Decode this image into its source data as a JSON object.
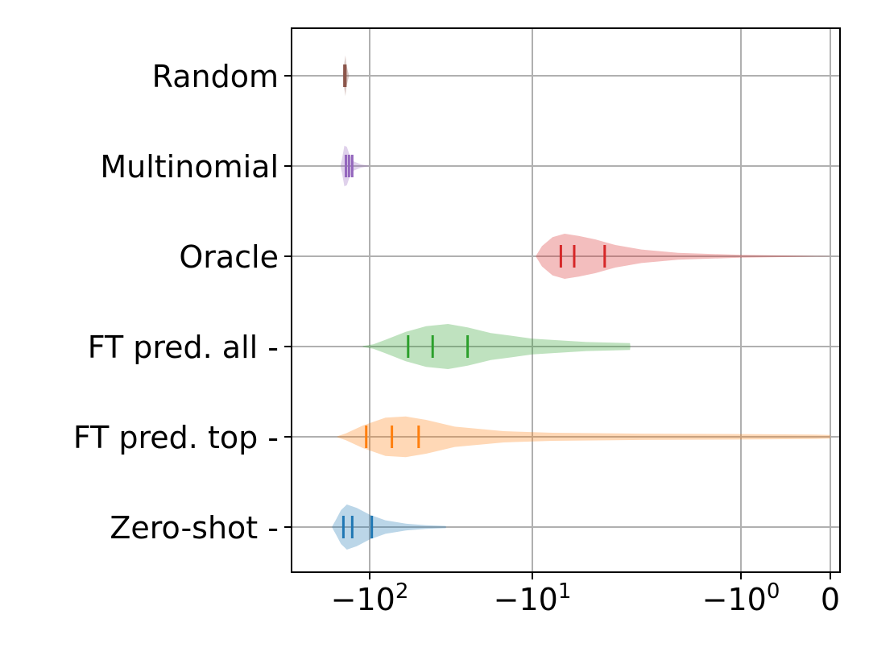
{
  "chart_data": {
    "type": "violin",
    "orientation": "horizontal",
    "xscale": "symlog",
    "xlim": [
      -170,
      0.05
    ],
    "xlabel": "",
    "ylabel": "",
    "title": "",
    "grid": true,
    "xticks": [
      {
        "value": -100,
        "base": "−10",
        "exp": "2"
      },
      {
        "value": -10,
        "base": "−10",
        "exp": "1"
      },
      {
        "value": -1,
        "base": "−10",
        "exp": "0"
      },
      {
        "value": 0,
        "base": "0",
        "exp": ""
      }
    ],
    "categories": [
      "Random",
      "Multinomial",
      "Oracle",
      "FT pred. all -",
      "FT pred. top -",
      "Zero-shot -"
    ],
    "series": [
      {
        "category": "Random",
        "color": "#8c564b",
        "quartiles": [
          -143,
          -142,
          -141
        ],
        "profile": [
          [
            -146,
            0.02
          ],
          [
            -143,
            0.6
          ],
          [
            -141,
            0.9
          ],
          [
            -139,
            0.5
          ],
          [
            -136,
            0.2
          ],
          [
            -134,
            0.03
          ]
        ]
      },
      {
        "category": "Multinomial",
        "color": "#9467bd",
        "quartiles": [
          -140,
          -134,
          -128
        ],
        "profile": [
          [
            -151,
            0.03
          ],
          [
            -148,
            0.3
          ],
          [
            -143,
            0.9
          ],
          [
            -138,
            0.85
          ],
          [
            -133,
            0.5
          ],
          [
            -125,
            0.2
          ],
          [
            -113,
            0.07
          ],
          [
            -100,
            0.01
          ]
        ]
      },
      {
        "category": "Oracle",
        "color": "#d62728",
        "quartiles": [
          -7.3,
          -6.3,
          -4.5
        ],
        "profile": [
          [
            -9.6,
            0.03
          ],
          [
            -9.0,
            0.45
          ],
          [
            -8.0,
            0.85
          ],
          [
            -7.0,
            1.0
          ],
          [
            -6.0,
            0.9
          ],
          [
            -5.0,
            0.75
          ],
          [
            -4.0,
            0.5
          ],
          [
            -3.0,
            0.3
          ],
          [
            -2.0,
            0.15
          ],
          [
            -1.0,
            0.06
          ],
          [
            -0.3,
            0.02
          ],
          [
            0.0,
            0.003
          ]
        ]
      },
      {
        "category": "FT pred. all -",
        "color": "#2ca02c",
        "quartiles": [
          -58,
          -41,
          -25
        ],
        "profile": [
          [
            -110,
            0.02
          ],
          [
            -95,
            0.1
          ],
          [
            -80,
            0.3
          ],
          [
            -60,
            0.65
          ],
          [
            -45,
            0.9
          ],
          [
            -33,
            1.0
          ],
          [
            -25,
            0.85
          ],
          [
            -18,
            0.6
          ],
          [
            -10,
            0.35
          ],
          [
            -5.5,
            0.2
          ],
          [
            -3.4,
            0.15
          ],
          [
            -3.39,
            0.0
          ]
        ]
      },
      {
        "category": "FT pred. top -",
        "color": "#ff7f0e",
        "quartiles": [
          -105,
          -73,
          -50
        ],
        "profile": [
          [
            -158,
            0.02
          ],
          [
            -140,
            0.15
          ],
          [
            -110,
            0.5
          ],
          [
            -80,
            0.85
          ],
          [
            -60,
            0.9
          ],
          [
            -45,
            0.75
          ],
          [
            -30,
            0.45
          ],
          [
            -15,
            0.25
          ],
          [
            -8,
            0.18
          ],
          [
            -3,
            0.14
          ],
          [
            -1,
            0.12
          ],
          [
            -0.2,
            0.1
          ],
          [
            0.0,
            0.08
          ]
        ]
      },
      {
        "category": "Zero-shot -",
        "color": "#1f77b4",
        "quartiles": [
          -145,
          -128,
          -97
        ],
        "profile": [
          [
            -170,
            0.03
          ],
          [
            -162,
            0.3
          ],
          [
            -150,
            0.75
          ],
          [
            -138,
            1.0
          ],
          [
            -120,
            0.85
          ],
          [
            -100,
            0.55
          ],
          [
            -80,
            0.3
          ],
          [
            -60,
            0.15
          ],
          [
            -45,
            0.08
          ],
          [
            -34,
            0.05
          ],
          [
            -33.9,
            0.0
          ]
        ]
      }
    ]
  }
}
